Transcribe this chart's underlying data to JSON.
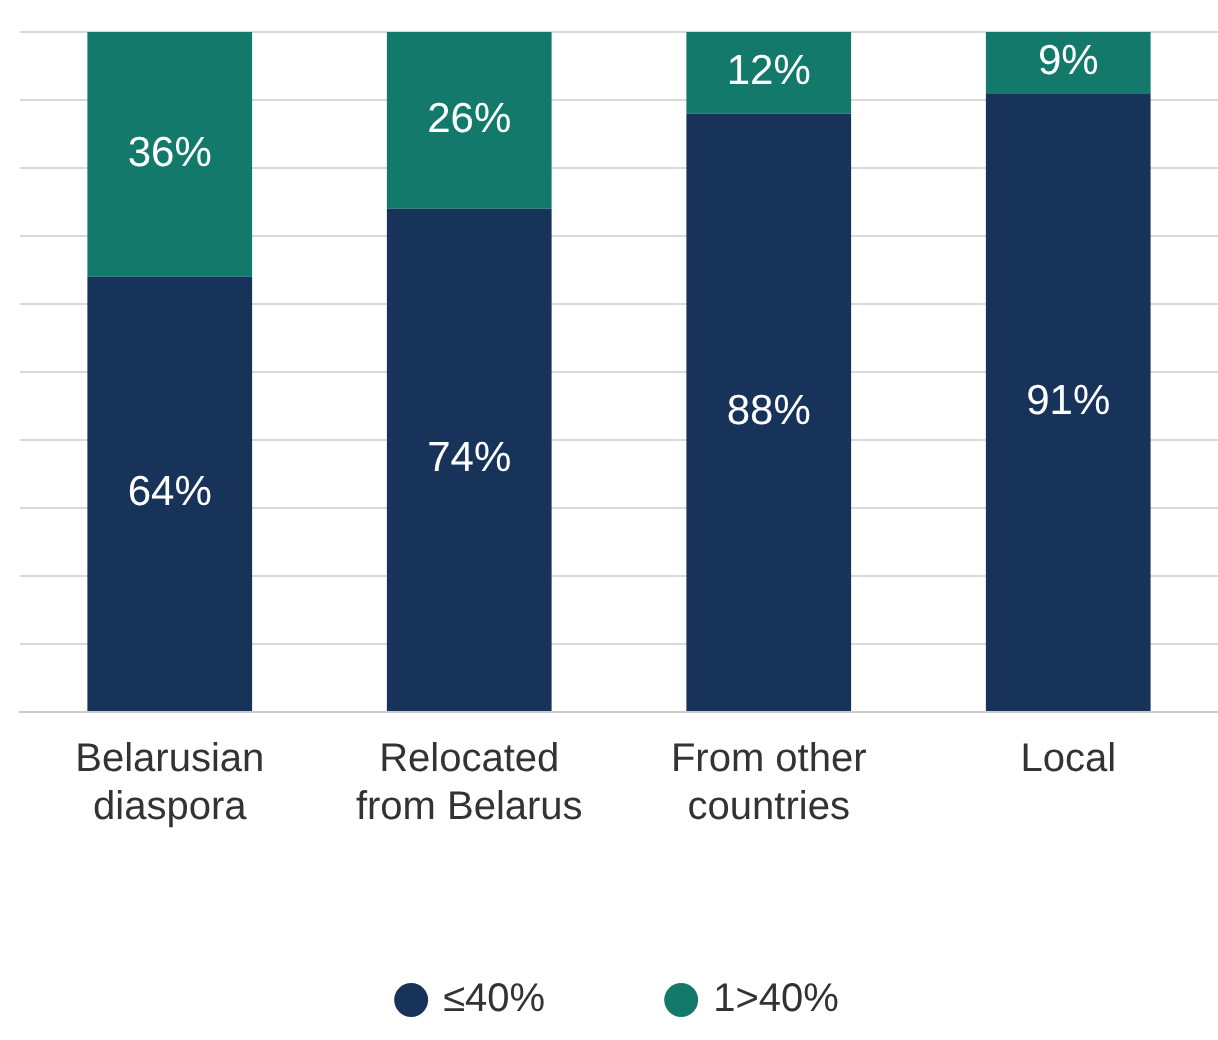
{
  "chart_data": {
    "type": "bar",
    "stacked": true,
    "categories": [
      "Belarusian\ndiaspora",
      "Relocated\nfrom Belarus",
      "From other\ncountries",
      "Local"
    ],
    "series": [
      {
        "name": "≤40%",
        "color": "#17335a",
        "values": [
          64,
          74,
          88,
          91
        ],
        "value_labels": [
          "64%",
          "74%",
          "88%",
          "91%"
        ]
      },
      {
        "name": "1>40%",
        "color": "#137a6b",
        "values": [
          36,
          26,
          12,
          9
        ],
        "value_labels": [
          "36%",
          "26%",
          "12%",
          "9%"
        ]
      }
    ],
    "tick_labels": "x",
    "grid": "y",
    "legend": "bottom",
    "marker": "circle"
  }
}
